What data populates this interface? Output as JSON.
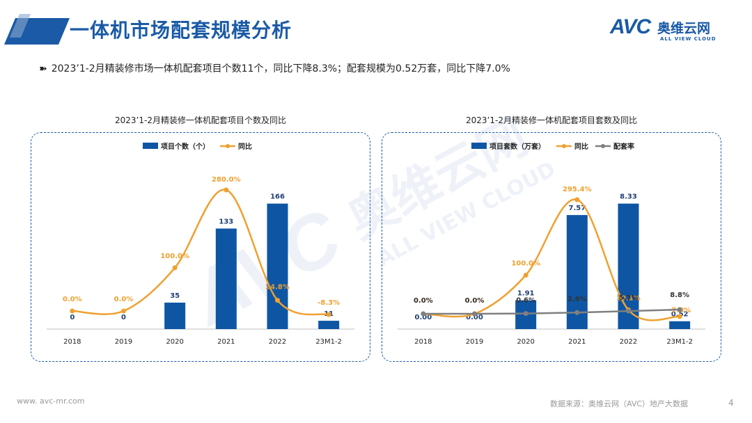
{
  "header": {
    "title": "一体机市场配套规模分析",
    "logo_main": "AVC",
    "logo_cn": "奥维云网",
    "logo_sub": "ALL VIEW CLOUD",
    "accent_color": "#1a5aa6"
  },
  "summary": "2023’1-2月精装修市场一体机配套项目个数11个，同比下降8.3%；配套规模为0.52万套，同比下降7.0%",
  "footer": {
    "website": "www. avc-mr.com",
    "source": "数据来源：奥维云网（AVC）地产大数据",
    "page": "4"
  },
  "chart_data": [
    {
      "type": "bar",
      "title": "2023’1-2月精装修一体机配套项目个数及同比",
      "categories": [
        "2018",
        "2019",
        "2020",
        "2021",
        "2022",
        "23M1-2"
      ],
      "series": [
        {
          "name": "项目个数（个）",
          "type": "bar",
          "color": "#0e56a4",
          "values": [
            0,
            0,
            35,
            133,
            166,
            11
          ],
          "labels": [
            "0",
            "0",
            "35",
            "133",
            "166",
            "11"
          ]
        },
        {
          "name": "同比",
          "type": "line",
          "color": "#f0a030",
          "values": [
            0.0,
            0.0,
            100.0,
            280.0,
            24.8,
            -8.3
          ],
          "labels": [
            "0.0%",
            "0.0%",
            "100.0%",
            "280.0%",
            "24.8%",
            "-8.3%"
          ]
        }
      ],
      "legend": "top"
    },
    {
      "type": "bar",
      "title": "2023’1-2月精装修一体机配套项目套数及同比",
      "categories": [
        "2018",
        "2019",
        "2020",
        "2021",
        "2022",
        "23M1-2"
      ],
      "series": [
        {
          "name": "项目套数（万套）",
          "type": "bar",
          "color": "#0e56a4",
          "values": [
            0.0,
            0.0,
            1.91,
            7.57,
            8.33,
            0.52
          ],
          "labels": [
            "0.00",
            "0.00",
            "1.91",
            "7.57",
            "8.33",
            "0.52"
          ]
        },
        {
          "name": "同比",
          "type": "line",
          "color": "#f0a030",
          "values": [
            0.0,
            0.0,
            100.0,
            295.4,
            10.1,
            -7.0
          ],
          "labels": [
            "0.0%",
            "0.0%",
            "100.0%",
            "295.4%",
            "10.1%",
            "-7.0%"
          ]
        },
        {
          "name": "配套率",
          "type": "line",
          "color": "#7f7f7f",
          "values": [
            0.0,
            0.0,
            0.6,
            2.6,
            5.7,
            8.8
          ],
          "labels": [
            "0.0%",
            "0.0%",
            "0.6%",
            "2.6%",
            "5.7%",
            "8.8%"
          ]
        }
      ],
      "legend": "top"
    }
  ]
}
